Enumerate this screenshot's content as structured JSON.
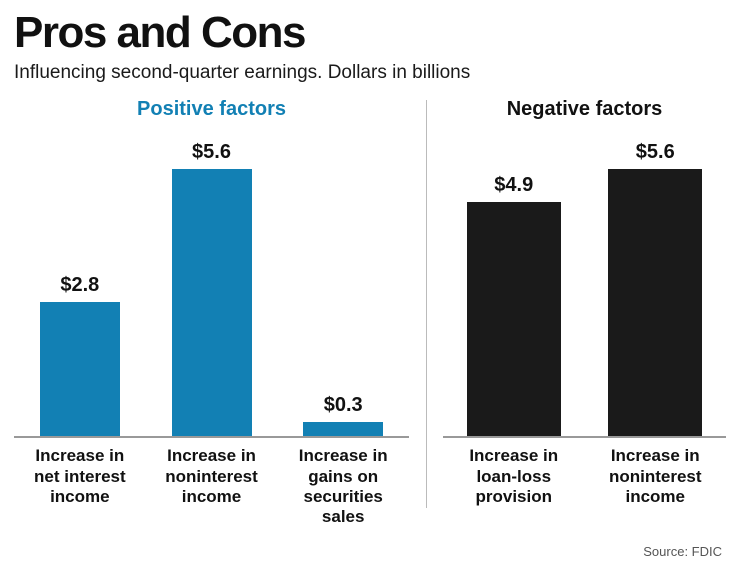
{
  "header": {
    "title": "Pros and Cons",
    "subtitle": "Influencing second-quarter earnings. Dollars in billions"
  },
  "source": "Source: FDIC",
  "chart_data": [
    {
      "type": "bar",
      "title": "Positive factors",
      "title_color": "#1280b4",
      "bar_color": "#1280b4",
      "categories": [
        "Increase in\nnet interest\nincome",
        "Increase in\nnoninterest\nincome",
        "Increase in\ngains on\nsecurities\nsales"
      ],
      "values": [
        2.8,
        5.6,
        0.3
      ],
      "value_labels": [
        "$2.8",
        "$5.6",
        "$0.3"
      ],
      "xlabel": "",
      "ylabel": "Dollars in billions",
      "ylim": [
        0,
        5.6
      ],
      "grid": false,
      "legend": "none"
    },
    {
      "type": "bar",
      "title": "Negative factors",
      "title_color": "#111111",
      "bar_color": "#1a1a1a",
      "categories": [
        "Increase in\nloan-loss\nprovision",
        "Increase in\nnoninterest\nincome"
      ],
      "values": [
        4.9,
        5.6
      ],
      "value_labels": [
        "$4.9",
        "$5.6"
      ],
      "xlabel": "",
      "ylabel": "Dollars in billions",
      "ylim": [
        0,
        5.6
      ],
      "grid": false,
      "legend": "none"
    }
  ]
}
